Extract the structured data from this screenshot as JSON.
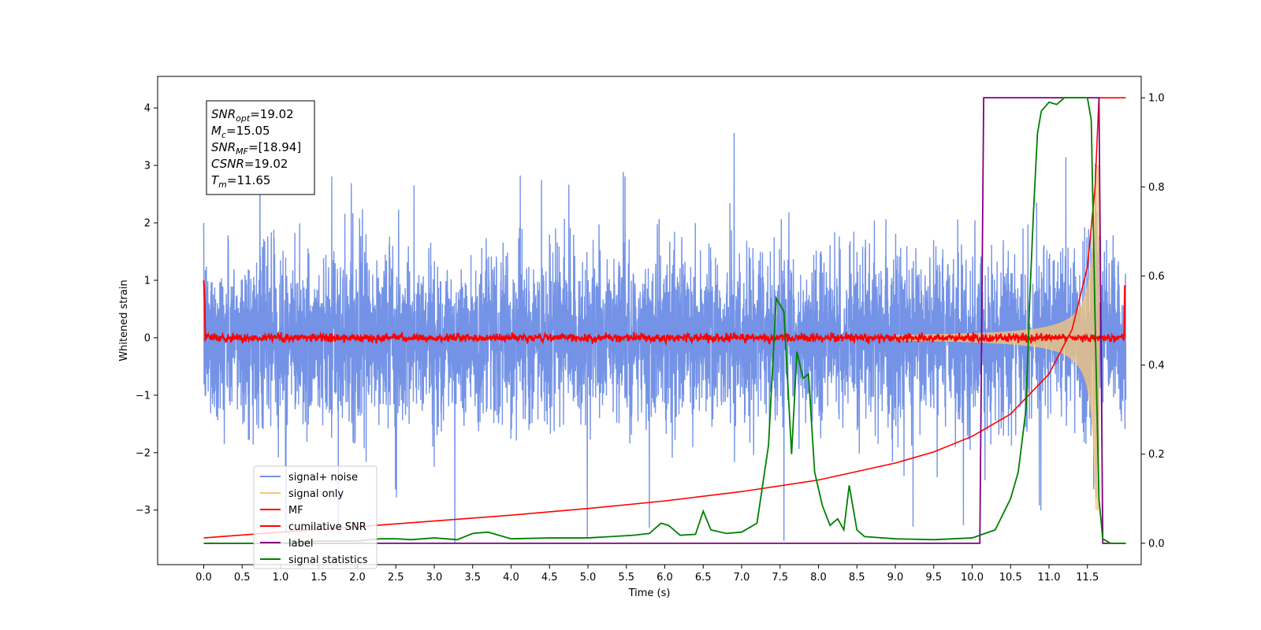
{
  "chart_data": {
    "type": "line",
    "xlabel": "Time (s)",
    "ylabel": "Whitened strain",
    "xlim": [
      -0.6,
      12.2
    ],
    "ylim": [
      -3.95,
      4.55
    ],
    "ylim_right": [
      -0.048,
      1.048
    ],
    "x_ticks": [
      "0.0",
      "0.5",
      "1.0",
      "1.5",
      "2.0",
      "2.5",
      "3.0",
      "3.5",
      "4.0",
      "4.5",
      "5.0",
      "5.5",
      "6.0",
      "6.5",
      "7.0",
      "7.5",
      "8.0",
      "8.5",
      "9.0",
      "9.5",
      "10.0",
      "10.5",
      "11.0",
      "11.5"
    ],
    "y_ticks": [
      "4",
      "3",
      "2",
      "1",
      "0",
      "−1",
      "−2",
      "−3"
    ],
    "y_ticks_right": [
      "1.0",
      "0.8",
      "0.6",
      "0.4",
      "0.2",
      "0.0"
    ],
    "grid": false,
    "legend_position": "lower-left",
    "annotation": {
      "lines": [
        {
          "base": "SNR",
          "sub": "opt",
          "value": "=19.02"
        },
        {
          "base": "M",
          "sub": "c",
          "value": "=15.05"
        },
        {
          "base": "SNR",
          "sub": "MF",
          "value": "=[18.94]"
        },
        {
          "base": "CSNR",
          "sub": "",
          "value": "=19.02"
        },
        {
          "base": "T",
          "sub": "m",
          "value": "=11.65"
        }
      ]
    },
    "series": [
      {
        "name": "signal+ noise",
        "color": "#7493e6",
        "axis": "left",
        "description": "white noise band, amplitude approx -2.2 to 2.2 with spikes to 3.8, signal chirp added near 10.5-11.65 s",
        "envelope": {
          "x": [
            0,
            12
          ],
          "low": -2.0,
          "high": 1.9,
          "spike_max": 3.8,
          "spike_min": -3.6
        }
      },
      {
        "name": "signal only",
        "color": "#f5c77a",
        "axis": "left",
        "chirp": {
          "t_start": 9.0,
          "t_merge": 11.65,
          "amp_start": 0.05,
          "amp_end": 3.0
        }
      },
      {
        "name": "MF",
        "color": "#ff0000",
        "axis": "left",
        "description": "matched filter output, near 0 with noise of ~0.07, spike at t=0 and t=12"
      },
      {
        "name": "cumilative SNR",
        "color": "#ff0000",
        "axis": "right",
        "x": [
          0.0,
          1.0,
          2.0,
          3.0,
          4.0,
          5.0,
          6.0,
          7.0,
          8.0,
          9.0,
          9.5,
          10.0,
          10.5,
          11.0,
          11.3,
          11.5,
          11.6,
          11.65,
          11.7,
          12.0
        ],
        "y": [
          0.012,
          0.025,
          0.037,
          0.05,
          0.063,
          0.078,
          0.095,
          0.116,
          0.142,
          0.18,
          0.205,
          0.24,
          0.29,
          0.38,
          0.48,
          0.62,
          0.8,
          1.0,
          1.0,
          1.0
        ]
      },
      {
        "name": "label",
        "color": "#800080",
        "axis": "right",
        "x": [
          0.0,
          10.1,
          10.15,
          11.65,
          11.7,
          12.0
        ],
        "y": [
          0.0,
          0.0,
          1.0,
          1.0,
          0.0,
          0.0
        ]
      },
      {
        "name": "signal statistics",
        "color": "#008000",
        "axis": "right",
        "x": [
          0.0,
          0.5,
          1.0,
          1.5,
          2.0,
          2.3,
          2.5,
          2.7,
          3.0,
          3.3,
          3.5,
          3.7,
          3.9,
          4.0,
          4.5,
          5.0,
          5.3,
          5.6,
          5.8,
          5.95,
          6.05,
          6.2,
          6.4,
          6.5,
          6.6,
          6.8,
          7.0,
          7.2,
          7.35,
          7.45,
          7.55,
          7.65,
          7.72,
          7.8,
          7.87,
          7.95,
          8.05,
          8.15,
          8.25,
          8.33,
          8.4,
          8.5,
          8.6,
          9.0,
          9.5,
          10.0,
          10.3,
          10.5,
          10.6,
          10.7,
          10.75,
          10.8,
          10.85,
          10.9,
          11.0,
          11.1,
          11.2,
          11.4,
          11.5,
          11.55,
          11.6,
          11.65,
          11.7,
          11.8,
          12.0
        ],
        "y": [
          0.0,
          0.0,
          0.0,
          0.005,
          0.005,
          0.01,
          0.01,
          0.008,
          0.012,
          0.008,
          0.022,
          0.025,
          0.015,
          0.01,
          0.012,
          0.012,
          0.015,
          0.018,
          0.022,
          0.045,
          0.04,
          0.018,
          0.02,
          0.072,
          0.03,
          0.022,
          0.025,
          0.045,
          0.22,
          0.55,
          0.52,
          0.2,
          0.43,
          0.37,
          0.38,
          0.16,
          0.085,
          0.04,
          0.055,
          0.03,
          0.13,
          0.03,
          0.015,
          0.01,
          0.008,
          0.012,
          0.03,
          0.1,
          0.16,
          0.3,
          0.55,
          0.75,
          0.92,
          0.97,
          0.99,
          0.985,
          1.0,
          1.0,
          1.0,
          0.95,
          0.5,
          0.1,
          0.01,
          0.0,
          0.0
        ]
      }
    ]
  }
}
